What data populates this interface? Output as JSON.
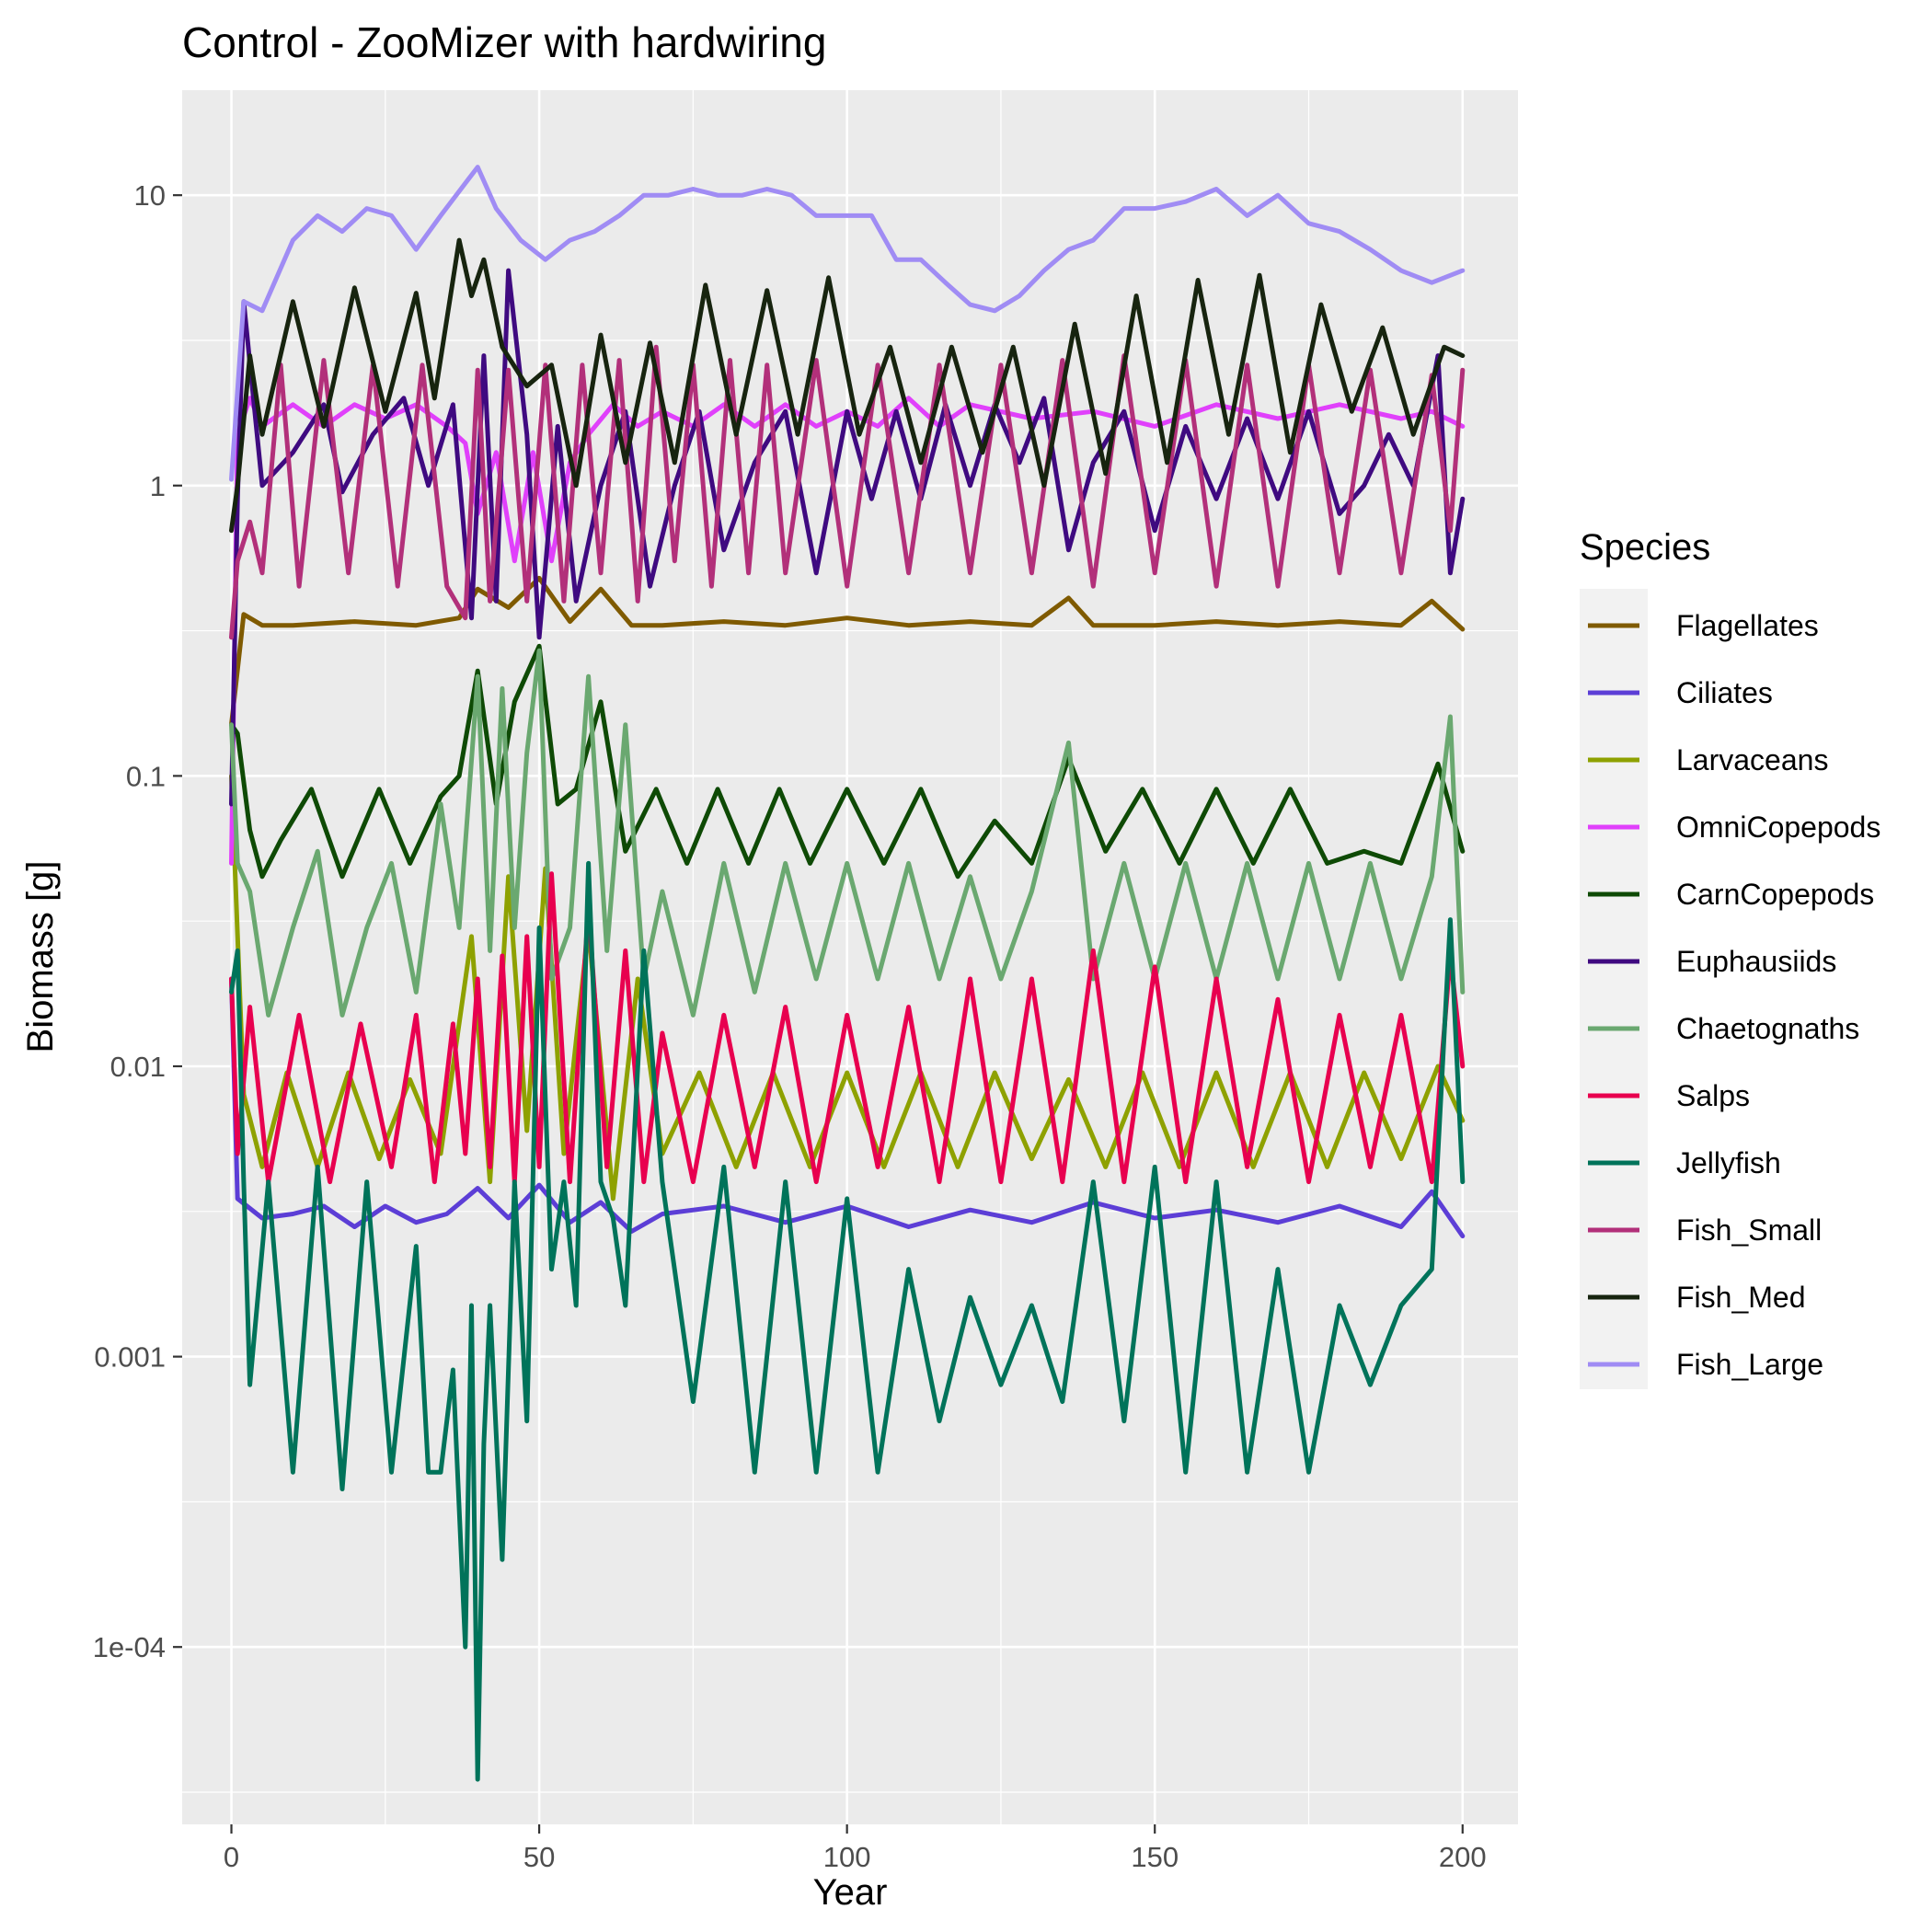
{
  "chart_data": {
    "type": "line",
    "title": "Control - ZooMizer with hardwiring",
    "xlabel": "Year",
    "ylabel": "Biomass [g]",
    "xlim": [
      -8,
      209
    ],
    "ylim": [
      2.45e-05,
      23
    ],
    "y_scale": "log10",
    "x_ticks": [
      0,
      50,
      100,
      150,
      200
    ],
    "x_tick_labels": [
      "0",
      "50",
      "100",
      "150",
      "200"
    ],
    "y_ticks": [
      0.0001,
      0.001,
      0.01,
      0.1,
      1,
      10
    ],
    "y_tick_labels": [
      "1e-04",
      "0.001",
      "0.01",
      "0.1",
      "1",
      "10"
    ],
    "grid": true,
    "legend": {
      "title": "Species",
      "position": "right"
    },
    "series": [
      {
        "name": "Flagellates",
        "color": "#7f5a00",
        "x": [
          0,
          2,
          5,
          10,
          20,
          30,
          37,
          40,
          45,
          50,
          55,
          60,
          65,
          70,
          80,
          90,
          100,
          110,
          120,
          130,
          136,
          140,
          150,
          160,
          170,
          180,
          190,
          195,
          200
        ],
        "y": [
          0.15,
          0.36,
          0.33,
          0.33,
          0.34,
          0.33,
          0.35,
          0.44,
          0.38,
          0.48,
          0.34,
          0.44,
          0.33,
          0.33,
          0.34,
          0.33,
          0.35,
          0.33,
          0.34,
          0.33,
          0.41,
          0.33,
          0.33,
          0.34,
          0.33,
          0.34,
          0.33,
          0.4,
          0.32
        ]
      },
      {
        "name": "Ciliates",
        "color": "#5c3ed6",
        "x": [
          0,
          1,
          5,
          10,
          15,
          20,
          25,
          30,
          35,
          40,
          45,
          50,
          55,
          60,
          65,
          70,
          80,
          90,
          100,
          110,
          120,
          130,
          140,
          150,
          160,
          170,
          180,
          190,
          195,
          200
        ],
        "y": [
          0.02,
          0.0035,
          0.003,
          0.0031,
          0.0033,
          0.0028,
          0.0033,
          0.0029,
          0.0031,
          0.0038,
          0.003,
          0.0039,
          0.0029,
          0.0034,
          0.0027,
          0.0031,
          0.0033,
          0.0029,
          0.0033,
          0.0028,
          0.0032,
          0.0029,
          0.0034,
          0.003,
          0.0032,
          0.0029,
          0.0033,
          0.0028,
          0.0037,
          0.0026
        ]
      },
      {
        "name": "Larvaceans",
        "color": "#8ea100",
        "x": [
          0,
          2,
          5,
          9,
          14,
          19,
          24,
          29,
          34,
          39,
          42,
          45,
          48,
          51,
          54,
          58,
          62,
          66,
          70,
          76,
          82,
          88,
          94,
          100,
          106,
          112,
          118,
          124,
          130,
          136,
          142,
          148,
          154,
          160,
          166,
          172,
          178,
          184,
          190,
          196,
          200
        ],
        "y": [
          0.1,
          0.008,
          0.0045,
          0.0095,
          0.0045,
          0.0095,
          0.0048,
          0.009,
          0.005,
          0.028,
          0.004,
          0.045,
          0.006,
          0.048,
          0.005,
          0.03,
          0.0035,
          0.02,
          0.005,
          0.0095,
          0.0045,
          0.0095,
          0.0045,
          0.0095,
          0.0045,
          0.0095,
          0.0045,
          0.0095,
          0.0048,
          0.009,
          0.0045,
          0.0095,
          0.0045,
          0.0095,
          0.0045,
          0.0095,
          0.0045,
          0.0095,
          0.0048,
          0.01,
          0.0065
        ]
      },
      {
        "name": "OmniCopepods",
        "color": "#e040fb",
        "x": [
          0,
          1,
          3,
          5,
          10,
          15,
          20,
          25,
          30,
          35,
          38,
          40,
          43,
          46,
          49,
          52,
          55,
          58,
          62,
          66,
          70,
          75,
          80,
          85,
          90,
          95,
          100,
          105,
          110,
          115,
          120,
          130,
          140,
          150,
          160,
          170,
          180,
          190,
          195,
          200
        ],
        "y": [
          0.05,
          1.5,
          2.0,
          1.6,
          1.9,
          1.6,
          1.9,
          1.7,
          1.9,
          1.6,
          1.4,
          0.8,
          1.3,
          0.55,
          1.3,
          0.55,
          1.2,
          1.5,
          1.9,
          1.6,
          1.8,
          1.6,
          1.9,
          1.6,
          1.9,
          1.6,
          1.8,
          1.6,
          2.0,
          1.6,
          1.9,
          1.7,
          1.8,
          1.6,
          1.9,
          1.7,
          1.9,
          1.7,
          1.8,
          1.6
        ]
      },
      {
        "name": "CarnCopepods",
        "color": "#0e4a05",
        "x": [
          0,
          1,
          3,
          5,
          8,
          13,
          18,
          24,
          29,
          34,
          37,
          40,
          43,
          46,
          50,
          53,
          56,
          60,
          64,
          69,
          74,
          79,
          84,
          89,
          94,
          100,
          106,
          112,
          118,
          124,
          130,
          136,
          142,
          148,
          154,
          160,
          166,
          172,
          178,
          184,
          190,
          196,
          200
        ],
        "y": [
          0.15,
          0.14,
          0.065,
          0.045,
          0.06,
          0.09,
          0.045,
          0.09,
          0.05,
          0.085,
          0.1,
          0.23,
          0.08,
          0.18,
          0.28,
          0.08,
          0.09,
          0.18,
          0.055,
          0.09,
          0.05,
          0.09,
          0.05,
          0.09,
          0.05,
          0.09,
          0.05,
          0.09,
          0.045,
          0.07,
          0.05,
          0.115,
          0.055,
          0.09,
          0.05,
          0.09,
          0.05,
          0.09,
          0.05,
          0.055,
          0.05,
          0.11,
          0.055
        ]
      },
      {
        "name": "Euphausiids",
        "color": "#3f0a80",
        "x": [
          0,
          1,
          2,
          5,
          10,
          15,
          18,
          23,
          28,
          32,
          36,
          39,
          41,
          43,
          45,
          48,
          50,
          53,
          56,
          60,
          64,
          68,
          72,
          76,
          80,
          85,
          90,
          95,
          100,
          104,
          108,
          112,
          116,
          120,
          124,
          128,
          132,
          136,
          140,
          145,
          150,
          155,
          160,
          165,
          170,
          175,
          180,
          184,
          188,
          192,
          196,
          198,
          200
        ],
        "y": [
          0.08,
          0.9,
          4.3,
          1.0,
          1.3,
          1.9,
          0.95,
          1.5,
          2.0,
          1.0,
          1.9,
          0.35,
          2.8,
          0.4,
          5.5,
          1.5,
          0.3,
          1.6,
          0.4,
          1.0,
          1.8,
          0.45,
          1.0,
          1.8,
          0.6,
          1.2,
          1.8,
          0.5,
          1.8,
          0.9,
          1.8,
          0.9,
          1.9,
          1.0,
          1.9,
          1.2,
          2.0,
          0.6,
          1.2,
          1.8,
          0.7,
          1.6,
          0.9,
          1.7,
          0.9,
          1.8,
          0.8,
          1.0,
          1.5,
          1.0,
          2.8,
          0.5,
          0.9
        ]
      },
      {
        "name": "Chaetognaths",
        "color": "#6aa870",
        "x": [
          0,
          1,
          3,
          6,
          10,
          14,
          18,
          22,
          26,
          30,
          34,
          37,
          40,
          42,
          44,
          46,
          48,
          50,
          52,
          55,
          58,
          61,
          64,
          67,
          70,
          75,
          80,
          85,
          90,
          95,
          100,
          105,
          110,
          115,
          120,
          125,
          130,
          136,
          140,
          145,
          150,
          155,
          160,
          165,
          170,
          175,
          180,
          185,
          190,
          195,
          198,
          200
        ],
        "y": [
          0.15,
          0.05,
          0.04,
          0.015,
          0.03,
          0.055,
          0.015,
          0.03,
          0.05,
          0.018,
          0.08,
          0.03,
          0.22,
          0.025,
          0.2,
          0.03,
          0.12,
          0.27,
          0.02,
          0.03,
          0.22,
          0.025,
          0.15,
          0.02,
          0.04,
          0.015,
          0.05,
          0.018,
          0.05,
          0.02,
          0.05,
          0.02,
          0.05,
          0.02,
          0.045,
          0.02,
          0.04,
          0.13,
          0.02,
          0.05,
          0.02,
          0.05,
          0.02,
          0.05,
          0.02,
          0.05,
          0.02,
          0.05,
          0.02,
          0.045,
          0.16,
          0.018
        ]
      },
      {
        "name": "Salps",
        "color": "#e8004f",
        "x": [
          0,
          1,
          3,
          6,
          11,
          16,
          21,
          26,
          30,
          33,
          36,
          38,
          40,
          42,
          44,
          46,
          48,
          50,
          52,
          55,
          58,
          61,
          64,
          67,
          70,
          75,
          80,
          85,
          90,
          95,
          100,
          105,
          110,
          115,
          120,
          125,
          130,
          135,
          140,
          145,
          150,
          155,
          160,
          165,
          170,
          175,
          180,
          185,
          190,
          195,
          198,
          200
        ],
        "y": [
          0.02,
          0.005,
          0.016,
          0.004,
          0.015,
          0.004,
          0.014,
          0.0045,
          0.015,
          0.004,
          0.014,
          0.005,
          0.02,
          0.0045,
          0.024,
          0.004,
          0.028,
          0.0045,
          0.046,
          0.004,
          0.035,
          0.0045,
          0.025,
          0.004,
          0.013,
          0.004,
          0.015,
          0.0045,
          0.016,
          0.004,
          0.015,
          0.0045,
          0.016,
          0.004,
          0.02,
          0.004,
          0.02,
          0.004,
          0.025,
          0.004,
          0.022,
          0.004,
          0.02,
          0.0045,
          0.017,
          0.004,
          0.015,
          0.0045,
          0.015,
          0.004,
          0.024,
          0.01
        ]
      },
      {
        "name": "Jellyfish",
        "color": "#00735a",
        "x": [
          0,
          1,
          2,
          3,
          6,
          10,
          14,
          18,
          22,
          26,
          30,
          32,
          34,
          36,
          38,
          39,
          40,
          41,
          42,
          44,
          46,
          48,
          50,
          52,
          54,
          56,
          58,
          60,
          62,
          64,
          67,
          70,
          75,
          80,
          85,
          90,
          95,
          100,
          105,
          110,
          115,
          120,
          125,
          130,
          135,
          140,
          145,
          150,
          155,
          160,
          165,
          170,
          175,
          180,
          185,
          190,
          195,
          198,
          200
        ],
        "y": [
          0.018,
          0.025,
          0.004,
          0.0008,
          0.004,
          0.0004,
          0.0045,
          0.00035,
          0.004,
          0.0004,
          0.0024,
          0.0004,
          0.0004,
          0.0009,
          0.0001,
          0.0015,
          3.5e-05,
          0.0005,
          0.0015,
          0.0002,
          0.004,
          0.0006,
          0.03,
          0.002,
          0.004,
          0.0015,
          0.05,
          0.004,
          0.003,
          0.0015,
          0.025,
          0.004,
          0.0007,
          0.0045,
          0.0004,
          0.004,
          0.0004,
          0.0035,
          0.0004,
          0.002,
          0.0006,
          0.0016,
          0.0008,
          0.0015,
          0.0007,
          0.004,
          0.0006,
          0.0045,
          0.0004,
          0.004,
          0.0004,
          0.002,
          0.0004,
          0.0015,
          0.0008,
          0.0015,
          0.002,
          0.032,
          0.004
        ]
      },
      {
        "name": "Fish_Small",
        "color": "#b2307a",
        "x": [
          0,
          1,
          3,
          5,
          8,
          11,
          15,
          19,
          23,
          27,
          31,
          35,
          38,
          40,
          42,
          45,
          48,
          51,
          54,
          57,
          60,
          63,
          66,
          69,
          72,
          75,
          78,
          81,
          84,
          87,
          90,
          95,
          100,
          105,
          110,
          115,
          120,
          125,
          130,
          135,
          140,
          145,
          150,
          155,
          160,
          165,
          170,
          175,
          180,
          185,
          190,
          195,
          198,
          200
        ],
        "y": [
          0.3,
          0.55,
          0.75,
          0.5,
          2.6,
          0.45,
          2.7,
          0.5,
          2.6,
          0.45,
          2.6,
          0.45,
          0.35,
          2.5,
          0.4,
          2.5,
          0.4,
          2.6,
          0.4,
          2.6,
          0.5,
          2.7,
          0.4,
          3.0,
          0.55,
          2.6,
          0.45,
          2.7,
          0.5,
          2.6,
          0.5,
          2.7,
          0.45,
          2.6,
          0.5,
          2.6,
          0.5,
          2.6,
          0.5,
          2.7,
          0.45,
          2.8,
          0.5,
          2.7,
          0.45,
          2.6,
          0.45,
          2.6,
          0.5,
          2.5,
          0.5,
          2.4,
          0.7,
          2.5
        ]
      },
      {
        "name": "Fish_Med",
        "color": "#17240f",
        "x": [
          0,
          1,
          3,
          5,
          10,
          15,
          20,
          25,
          30,
          33,
          37,
          39,
          41,
          44,
          48,
          52,
          56,
          60,
          64,
          68,
          72,
          77,
          82,
          87,
          92,
          97,
          102,
          107,
          112,
          117,
          122,
          127,
          132,
          137,
          142,
          147,
          152,
          157,
          162,
          167,
          172,
          177,
          182,
          187,
          192,
          197,
          200
        ],
        "y": [
          0.7,
          1.0,
          2.8,
          1.5,
          4.3,
          1.6,
          4.8,
          1.8,
          4.6,
          2.0,
          7.0,
          4.5,
          6.0,
          3.0,
          2.2,
          2.6,
          1.0,
          3.3,
          1.2,
          3.1,
          1.2,
          4.9,
          1.5,
          4.7,
          1.5,
          5.2,
          1.5,
          3.0,
          1.2,
          3.0,
          1.3,
          3.0,
          1.0,
          3.6,
          1.1,
          4.5,
          1.2,
          5.1,
          1.5,
          5.3,
          1.3,
          4.2,
          1.8,
          3.5,
          1.5,
          3.0,
          2.8
        ]
      },
      {
        "name": "Fish_Large",
        "color": "#a08cf4",
        "x": [
          0,
          2,
          5,
          10,
          14,
          18,
          22,
          26,
          30,
          34,
          38,
          40,
          43,
          47,
          51,
          55,
          59,
          63,
          67,
          71,
          75,
          79,
          83,
          87,
          91,
          95,
          100,
          104,
          108,
          112,
          116,
          120,
          124,
          128,
          132,
          136,
          140,
          145,
          150,
          155,
          160,
          165,
          170,
          175,
          180,
          185,
          190,
          195,
          200
        ],
        "y": [
          1.05,
          4.3,
          4.0,
          7.0,
          8.5,
          7.5,
          9.0,
          8.5,
          6.5,
          8.5,
          11.0,
          12.5,
          9.0,
          7.0,
          6.0,
          7.0,
          7.5,
          8.5,
          10.0,
          10.0,
          10.5,
          10.0,
          10.0,
          10.5,
          10.0,
          8.5,
          8.5,
          8.5,
          6.0,
          6.0,
          5.0,
          4.2,
          4.0,
          4.5,
          5.5,
          6.5,
          7.0,
          9.0,
          9.0,
          9.5,
          10.5,
          8.5,
          10.0,
          8.0,
          7.5,
          6.5,
          5.5,
          5.0,
          5.5
        ]
      }
    ]
  }
}
